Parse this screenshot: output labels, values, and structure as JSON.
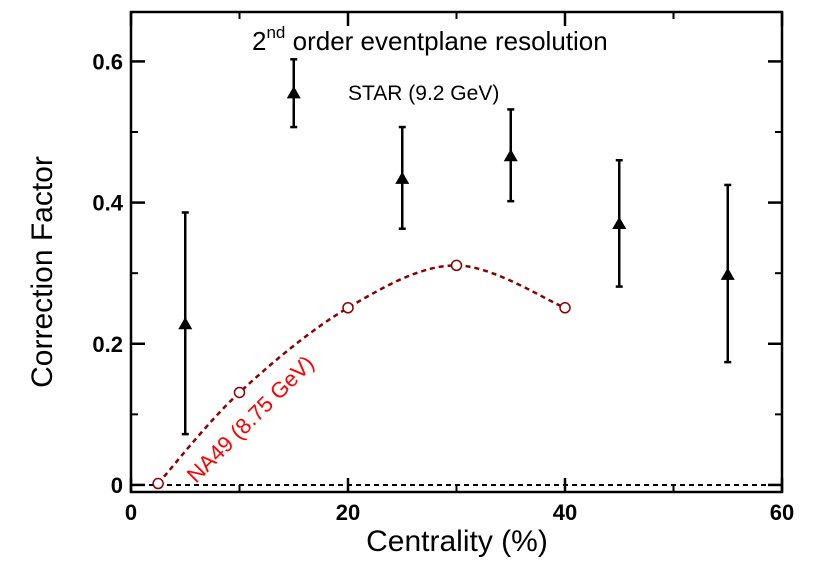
{
  "chart_data": {
    "type": "scatter",
    "title_main": "2",
    "title_sup": "nd",
    "title_rest": " order eventplane resolution",
    "xlabel": "Centrality (%)",
    "ylabel": "Correction Factor",
    "xlim": [
      0,
      60
    ],
    "ylim": [
      -0.01,
      0.67
    ],
    "xticks": [
      0,
      20,
      40,
      60
    ],
    "xtick_labels": [
      "0",
      "20",
      "40",
      "60"
    ],
    "yticks": [
      0,
      0.2,
      0.4,
      0.6
    ],
    "ytick_labels": [
      "0",
      "0.2",
      "0.4",
      "0.6"
    ],
    "zero_line": {
      "y": 0,
      "style": "dashed",
      "color": "#000000"
    },
    "series": [
      {
        "name": "STAR (9.2 GeV)",
        "marker": "filled-triangle",
        "color": "#000000",
        "x": [
          5,
          15,
          25,
          35,
          45,
          55
        ],
        "y": [
          0.228,
          0.555,
          0.434,
          0.466,
          0.37,
          0.298
        ],
        "yerr_low": [
          0.072,
          0.507,
          0.363,
          0.402,
          0.281,
          0.174
        ],
        "yerr_high": [
          0.386,
          0.603,
          0.507,
          0.532,
          0.46,
          0.425
        ]
      },
      {
        "name": "NA49 (8.75 GeV)",
        "marker": "open-circle",
        "color": "#8b0000",
        "label_color": "#ff0000",
        "line_style": "dashed",
        "x": [
          2.5,
          10,
          20,
          30,
          40
        ],
        "y": [
          0.002,
          0.131,
          0.251,
          0.311,
          0.251
        ]
      }
    ]
  }
}
